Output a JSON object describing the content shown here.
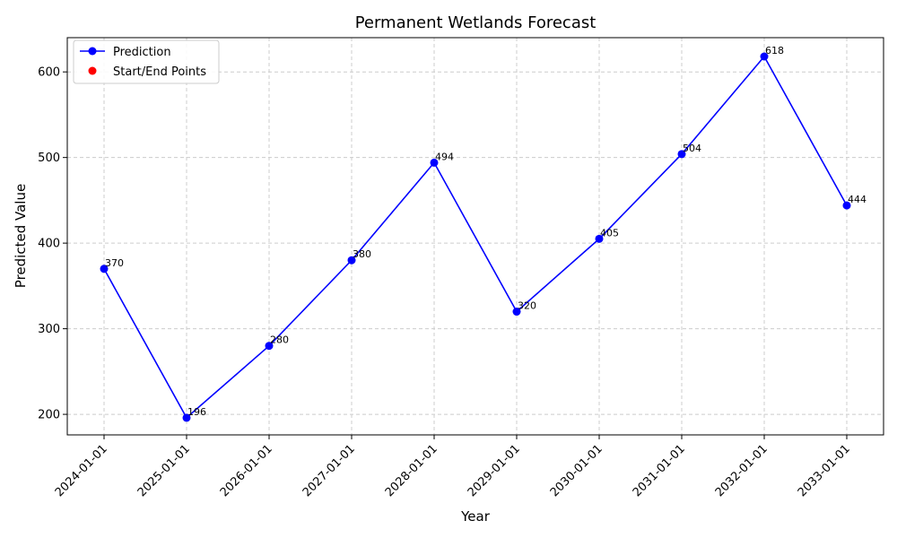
{
  "chart_data": {
    "type": "line",
    "title": "Permanent Wetlands Forecast",
    "xlabel": "Year",
    "ylabel": "Predicted Value",
    "categories": [
      "2024-01-01",
      "2025-01-01",
      "2026-01-01",
      "2027-01-01",
      "2028-01-01",
      "2029-01-01",
      "2030-01-01",
      "2031-01-01",
      "2032-01-01",
      "2033-01-01"
    ],
    "series": [
      {
        "name": "Prediction",
        "values": [
          370,
          196,
          280,
          380,
          494,
          320,
          405,
          504,
          618,
          444
        ],
        "color": "#0000ff"
      }
    ],
    "data_labels": [
      "370",
      "196",
      "280",
      "380",
      "494",
      "320",
      "405",
      "504",
      "618",
      "444"
    ],
    "start_end_points": {
      "name": "Start/End Points",
      "color": "#ff0000"
    },
    "yticks": [
      200,
      300,
      400,
      500,
      600
    ],
    "ylim": [
      176,
      640
    ],
    "grid": true,
    "legend_position": "top-left",
    "x_tick_rotation": 45
  }
}
